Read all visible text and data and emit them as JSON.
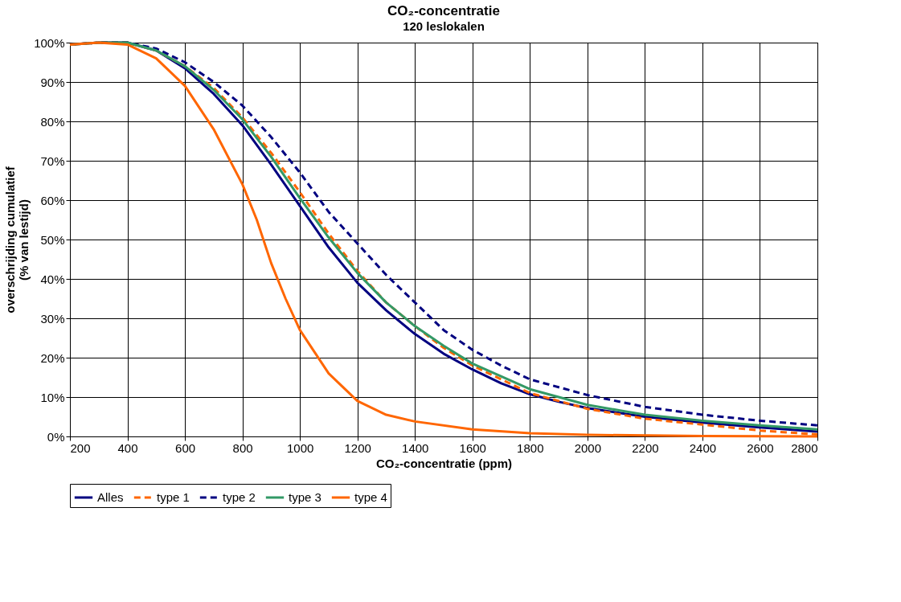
{
  "chart_data": {
    "type": "line",
    "title": "CO₂-concentratie",
    "subtitle": "120 leslokalen",
    "xlabel": "CO₂-concentratie (ppm)",
    "ylabel": "overschrijding cumulatief\n(% van lestijd)",
    "xlim": [
      200,
      2800
    ],
    "xticks": [
      200,
      400,
      600,
      800,
      1000,
      1200,
      1400,
      1600,
      1800,
      2000,
      2200,
      2400,
      2600,
      2800
    ],
    "ylim": [
      0,
      100
    ],
    "yticks": [
      {
        "value": 0,
        "label": "0%"
      },
      {
        "value": 10,
        "label": "10%"
      },
      {
        "value": 20,
        "label": "20%"
      },
      {
        "value": 30,
        "label": "30%"
      },
      {
        "value": 40,
        "label": "40%"
      },
      {
        "value": 50,
        "label": "50%"
      },
      {
        "value": 60,
        "label": "60%"
      },
      {
        "value": 70,
        "label": "70%"
      },
      {
        "value": 80,
        "label": "80%"
      },
      {
        "value": 90,
        "label": "90%"
      },
      {
        "value": 100,
        "label": "100%"
      }
    ],
    "grid": true,
    "legend": "bottom",
    "marker": "none",
    "series": [
      {
        "name": "Alles",
        "color": "#000080",
        "line_style": "solid",
        "x": [
          200,
          300,
          400,
          500,
          600,
          700,
          800,
          900,
          1000,
          1100,
          1200,
          1300,
          1400,
          1500,
          1600,
          1700,
          1800,
          1900,
          2000,
          2200,
          2400,
          2600,
          2800
        ],
        "values": [
          99.5,
          100,
          100,
          98,
          93.5,
          87,
          79,
          69,
          58.5,
          48,
          39,
          32,
          26,
          21,
          17,
          13.5,
          10.7,
          8.8,
          7.2,
          5,
          3.5,
          2.3,
          1.2
        ]
      },
      {
        "name": "type 1",
        "color": "#ff6600",
        "line_style": "dashed",
        "x": [
          200,
          300,
          400,
          500,
          600,
          700,
          800,
          900,
          1000,
          1100,
          1200,
          1300,
          1400,
          1500,
          1600,
          1800,
          2000,
          2200,
          2400,
          2600,
          2800
        ],
        "values": [
          99.5,
          100,
          100,
          98,
          94,
          88.5,
          81,
          72,
          62,
          51.5,
          42,
          34,
          28,
          22.5,
          18,
          11,
          7,
          4.5,
          3,
          1.5,
          0.5
        ]
      },
      {
        "name": "type 2",
        "color": "#000080",
        "line_style": "dashed",
        "x": [
          200,
          300,
          400,
          500,
          600,
          700,
          800,
          900,
          1000,
          1100,
          1200,
          1300,
          1400,
          1500,
          1600,
          1700,
          1800,
          2000,
          2200,
          2400,
          2600,
          2800
        ],
        "values": [
          99.5,
          100,
          100,
          98.5,
          95,
          90,
          84,
          76,
          67,
          57,
          49,
          41,
          34,
          27,
          22,
          18,
          14.5,
          10.5,
          7.5,
          5.5,
          4,
          2.8
        ]
      },
      {
        "name": "type 3",
        "color": "#339966",
        "line_style": "solid",
        "x": [
          200,
          300,
          400,
          500,
          600,
          700,
          800,
          900,
          1000,
          1100,
          1200,
          1300,
          1400,
          1500,
          1600,
          1800,
          2000,
          2200,
          2400,
          2600,
          2800
        ],
        "values": [
          99.5,
          100,
          100,
          98,
          94,
          88,
          80.5,
          71,
          60.5,
          50.5,
          41.5,
          34,
          28,
          23,
          18.5,
          12,
          8,
          5.5,
          4,
          2.8,
          1.8
        ]
      },
      {
        "name": "type 4",
        "color": "#ff6600",
        "line_style": "solid",
        "x": [
          200,
          300,
          400,
          500,
          600,
          700,
          800,
          850,
          900,
          950,
          1000,
          1100,
          1200,
          1300,
          1400,
          1600,
          1800,
          2000,
          2400,
          2800
        ],
        "values": [
          99.5,
          100,
          99.5,
          96,
          89,
          78,
          64,
          55,
          44,
          35,
          27,
          16,
          9,
          5.5,
          3.8,
          1.8,
          0.8,
          0.4,
          0.1,
          0
        ]
      }
    ]
  }
}
